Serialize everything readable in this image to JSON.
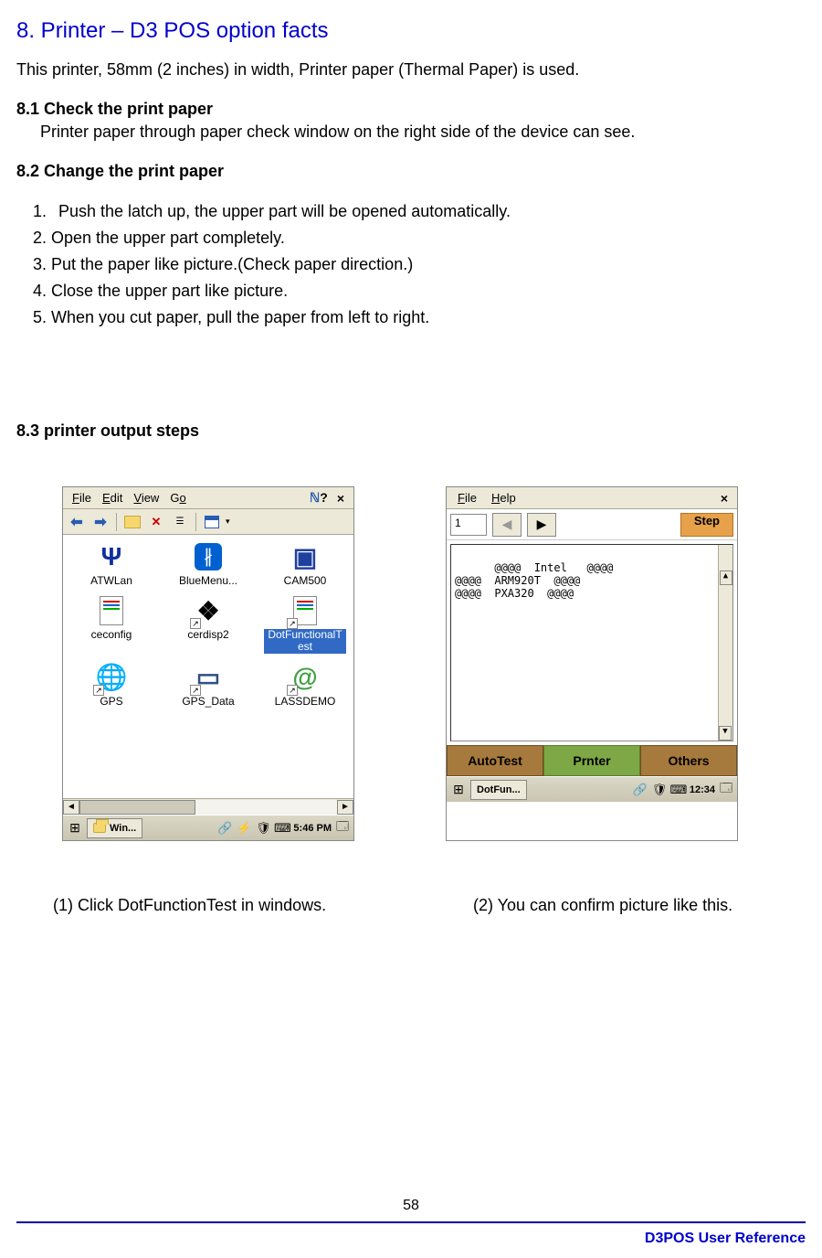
{
  "mainTitle": "8. Printer – D3 POS option facts",
  "intro": "This printer, 58mm (2 inches) in width, Printer paper (Thermal Paper) is used.",
  "s81title": "8.1 Check the print paper",
  "s81body": "Printer paper through paper check window on the right side of the device can see.",
  "s82title": "8.2 Change the print paper",
  "steps": [
    " Push the latch up, the upper part will be opened automatically.",
    "Open the upper part completely.",
    "Put the paper like picture.(Check paper direction.)",
    "Close the upper part like picture.",
    "When you cut paper, pull the paper from left to right."
  ],
  "s83title": "8.3 printer output steps",
  "leftWindow": {
    "menus": [
      "File",
      "Edit",
      "View",
      "Go"
    ],
    "helpIcon": "?",
    "closeIcon": "×",
    "icons": [
      {
        "label": "ATWLan",
        "glyph": "Ψ",
        "color": "#1030a0"
      },
      {
        "label": "BlueMenu...",
        "glyph": "᚛",
        "color": "#0050c0",
        "bt": true
      },
      {
        "label": "CAM500",
        "glyph": "▣",
        "color": "#2040a0"
      },
      {
        "label": "ceconfig",
        "glyph": "",
        "doc": true
      },
      {
        "label": "cerdisp2",
        "glyph": "❖",
        "color": "#000",
        "shortcut": true
      },
      {
        "label": "DotFunctionalTest",
        "glyph": "",
        "doc": true,
        "shortcut": true,
        "selected": true
      },
      {
        "label": "GPS",
        "glyph": "🌐",
        "color": "#107020",
        "shortcut": true
      },
      {
        "label": "GPS_Data",
        "glyph": "▭",
        "color": "#305080",
        "shortcut": true
      },
      {
        "label": "LASSDEMO",
        "glyph": "@",
        "color": "#40a040",
        "shortcut": true
      }
    ],
    "taskbar": {
      "taskLabel": "Win...",
      "clock": "5:46 PM"
    }
  },
  "rightWindow": {
    "menus": [
      "File",
      "Help"
    ],
    "closeIcon": "×",
    "stepNum": "1",
    "stepBtn": "Step",
    "textLines": "@@@@  Intel   @@@@\n@@@@  ARM920T  @@@@\n@@@@  PXA320  @@@@",
    "tabs": [
      "AutoTest",
      "Prnter",
      "Others"
    ],
    "taskbar": {
      "taskLabel": "DotFun...",
      "clock": "12:34"
    }
  },
  "caption1": "(1) Click DotFunctionTest in windows.",
  "caption2": "(2) You can confirm picture like this.",
  "pageNum": "58",
  "footer": "D3POS User Reference"
}
